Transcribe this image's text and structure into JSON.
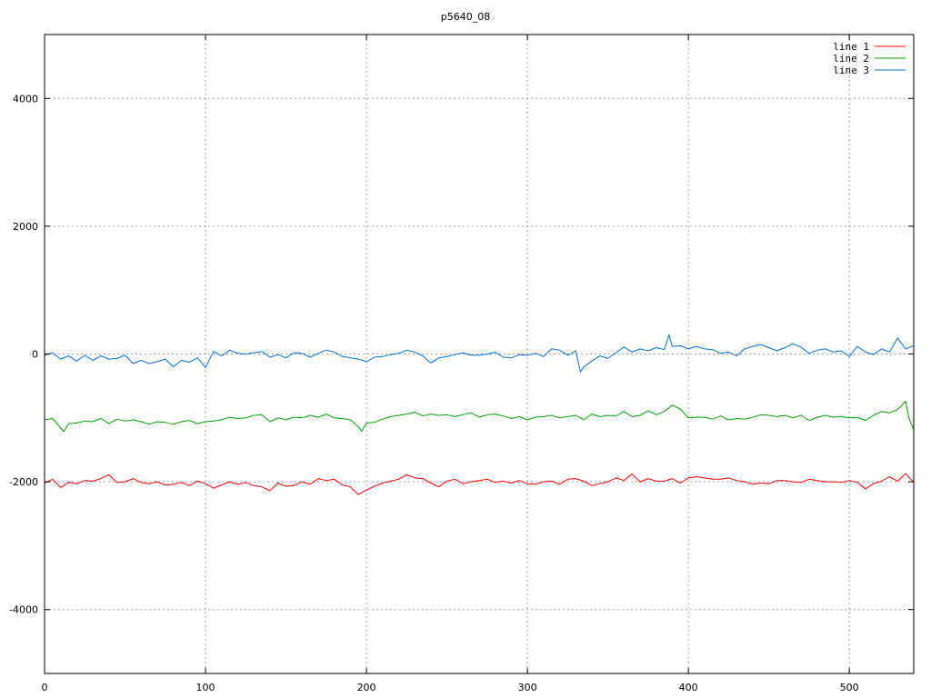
{
  "chart_data": {
    "type": "line",
    "title": "p5640_08",
    "xlabel": "",
    "ylabel": "",
    "xlim": [
      0,
      540
    ],
    "ylim": [
      -5000,
      5000
    ],
    "xticks": [
      0,
      100,
      200,
      300,
      400,
      500
    ],
    "yticks": [
      -4000,
      -2000,
      0,
      2000,
      4000
    ],
    "grid": true,
    "legend_position": "top-right",
    "series": [
      {
        "name": "line 1",
        "color": "#ff0000",
        "x": [
          0,
          5,
          10,
          15,
          20,
          25,
          30,
          35,
          40,
          45,
          50,
          55,
          60,
          65,
          70,
          75,
          80,
          85,
          90,
          95,
          100,
          105,
          110,
          115,
          120,
          125,
          130,
          135,
          140,
          145,
          150,
          155,
          160,
          165,
          170,
          175,
          180,
          185,
          190,
          195,
          200,
          205,
          210,
          215,
          220,
          225,
          230,
          235,
          240,
          245,
          250,
          255,
          260,
          265,
          270,
          275,
          280,
          285,
          290,
          295,
          300,
          305,
          310,
          315,
          320,
          325,
          330,
          335,
          340,
          345,
          350,
          355,
          360,
          365,
          370,
          375,
          380,
          385,
          390,
          395,
          400,
          405,
          410,
          415,
          420,
          425,
          430,
          435,
          440,
          445,
          450,
          455,
          460,
          465,
          470,
          475,
          480,
          485,
          490,
          495,
          500,
          505,
          510,
          515,
          520,
          525,
          530,
          535,
          540
        ],
        "y": [
          -2020,
          -1960,
          -2090,
          -2010,
          -2030,
          -1980,
          -1990,
          -1950,
          -1890,
          -2010,
          -2000,
          -1950,
          -2010,
          -2030,
          -2000,
          -2050,
          -2040,
          -2010,
          -2060,
          -1990,
          -2030,
          -2100,
          -2050,
          -2000,
          -2040,
          -2010,
          -2060,
          -2080,
          -2140,
          -2020,
          -2070,
          -2060,
          -2000,
          -2040,
          -1950,
          -1980,
          -1960,
          -2050,
          -2080,
          -2200,
          -2130,
          -2070,
          -2020,
          -1990,
          -1960,
          -1890,
          -1940,
          -1950,
          -2020,
          -2080,
          -1990,
          -1960,
          -2030,
          -2000,
          -1980,
          -1960,
          -2010,
          -1990,
          -2020,
          -1980,
          -2030,
          -2040,
          -2000,
          -1990,
          -2040,
          -1960,
          -1950,
          -1990,
          -2060,
          -2030,
          -2000,
          -1940,
          -1980,
          -1880,
          -2000,
          -1950,
          -1990,
          -1990,
          -1950,
          -2020,
          -1940,
          -1920,
          -1940,
          -1960,
          -1960,
          -1940,
          -1980,
          -2000,
          -2040,
          -2020,
          -2030,
          -1980,
          -1980,
          -2000,
          -2010,
          -1960,
          -1980,
          -2000,
          -2000,
          -2010,
          -1980,
          -2010,
          -2110,
          -2030,
          -1990,
          -1920,
          -1990,
          -1870,
          -2010
        ]
      },
      {
        "name": "line 2",
        "color": "#00a000",
        "x": [
          0,
          5,
          10,
          12,
          15,
          20,
          25,
          30,
          35,
          40,
          45,
          50,
          55,
          60,
          65,
          70,
          75,
          80,
          85,
          90,
          95,
          100,
          105,
          110,
          115,
          120,
          125,
          130,
          135,
          140,
          145,
          150,
          155,
          160,
          165,
          170,
          175,
          180,
          185,
          190,
          195,
          197,
          200,
          205,
          210,
          215,
          220,
          225,
          230,
          235,
          240,
          245,
          250,
          255,
          260,
          265,
          270,
          275,
          280,
          285,
          290,
          295,
          300,
          305,
          310,
          315,
          320,
          325,
          330,
          335,
          340,
          345,
          350,
          355,
          360,
          365,
          370,
          375,
          380,
          385,
          390,
          395,
          400,
          405,
          410,
          415,
          420,
          425,
          430,
          435,
          440,
          445,
          450,
          455,
          460,
          465,
          470,
          475,
          480,
          485,
          490,
          495,
          500,
          505,
          510,
          515,
          520,
          525,
          530,
          535,
          537,
          540
        ],
        "y": [
          -1030,
          -1010,
          -1160,
          -1210,
          -1090,
          -1080,
          -1050,
          -1060,
          -1010,
          -1090,
          -1020,
          -1050,
          -1030,
          -1060,
          -1100,
          -1060,
          -1070,
          -1100,
          -1060,
          -1040,
          -1090,
          -1060,
          -1050,
          -1030,
          -990,
          -1010,
          -1000,
          -960,
          -950,
          -1060,
          -1000,
          -1030,
          -990,
          -1000,
          -960,
          -990,
          -940,
          -1000,
          -1010,
          -1030,
          -1140,
          -1210,
          -1080,
          -1070,
          -1020,
          -980,
          -960,
          -940,
          -910,
          -970,
          -940,
          -960,
          -950,
          -980,
          -950,
          -920,
          -990,
          -950,
          -940,
          -970,
          -1010,
          -980,
          -1030,
          -990,
          -980,
          -960,
          -1000,
          -980,
          -960,
          -1030,
          -940,
          -980,
          -960,
          -970,
          -900,
          -980,
          -960,
          -890,
          -950,
          -900,
          -800,
          -860,
          -1000,
          -990,
          -990,
          -1020,
          -970,
          -1030,
          -1010,
          -1020,
          -990,
          -950,
          -960,
          -980,
          -960,
          -1000,
          -960,
          -1040,
          -990,
          -960,
          -990,
          -980,
          -1000,
          -990,
          -1040,
          -960,
          -900,
          -920,
          -870,
          -740,
          -1000,
          -1190
        ]
      },
      {
        "name": "line 3",
        "color": "#0070e0",
        "x": [
          0,
          5,
          10,
          15,
          20,
          25,
          30,
          35,
          40,
          45,
          50,
          55,
          60,
          65,
          70,
          75,
          80,
          85,
          90,
          95,
          100,
          105,
          110,
          115,
          120,
          125,
          130,
          135,
          140,
          145,
          150,
          155,
          160,
          165,
          170,
          175,
          180,
          185,
          190,
          195,
          200,
          205,
          210,
          215,
          220,
          225,
          230,
          235,
          240,
          245,
          250,
          255,
          260,
          265,
          270,
          275,
          280,
          285,
          290,
          295,
          300,
          305,
          310,
          315,
          320,
          325,
          330,
          333,
          335,
          340,
          345,
          350,
          355,
          360,
          365,
          370,
          375,
          380,
          385,
          388,
          390,
          395,
          400,
          405,
          410,
          415,
          420,
          425,
          430,
          435,
          440,
          445,
          450,
          455,
          460,
          465,
          470,
          475,
          480,
          485,
          490,
          495,
          500,
          505,
          510,
          515,
          520,
          525,
          530,
          535,
          540
        ],
        "y": [
          -20,
          20,
          -80,
          -30,
          -110,
          -20,
          -100,
          -30,
          -80,
          -70,
          -20,
          -150,
          -100,
          -150,
          -120,
          -80,
          -200,
          -100,
          -130,
          -60,
          -210,
          40,
          -30,
          60,
          10,
          0,
          20,
          40,
          -50,
          -10,
          -60,
          20,
          10,
          -50,
          10,
          60,
          30,
          -40,
          -60,
          -80,
          -120,
          -50,
          -40,
          -10,
          10,
          60,
          30,
          -30,
          -140,
          -60,
          -40,
          -10,
          20,
          -20,
          -20,
          0,
          30,
          -50,
          -60,
          -10,
          -20,
          10,
          -40,
          80,
          60,
          -20,
          50,
          -280,
          -200,
          -110,
          -30,
          -70,
          20,
          110,
          30,
          80,
          50,
          100,
          70,
          300,
          120,
          130,
          80,
          120,
          80,
          70,
          10,
          30,
          -30,
          80,
          120,
          150,
          100,
          50,
          100,
          160,
          110,
          10,
          60,
          80,
          30,
          50,
          -40,
          120,
          30,
          -10,
          80,
          30,
          250,
          80,
          130
        ]
      }
    ]
  }
}
